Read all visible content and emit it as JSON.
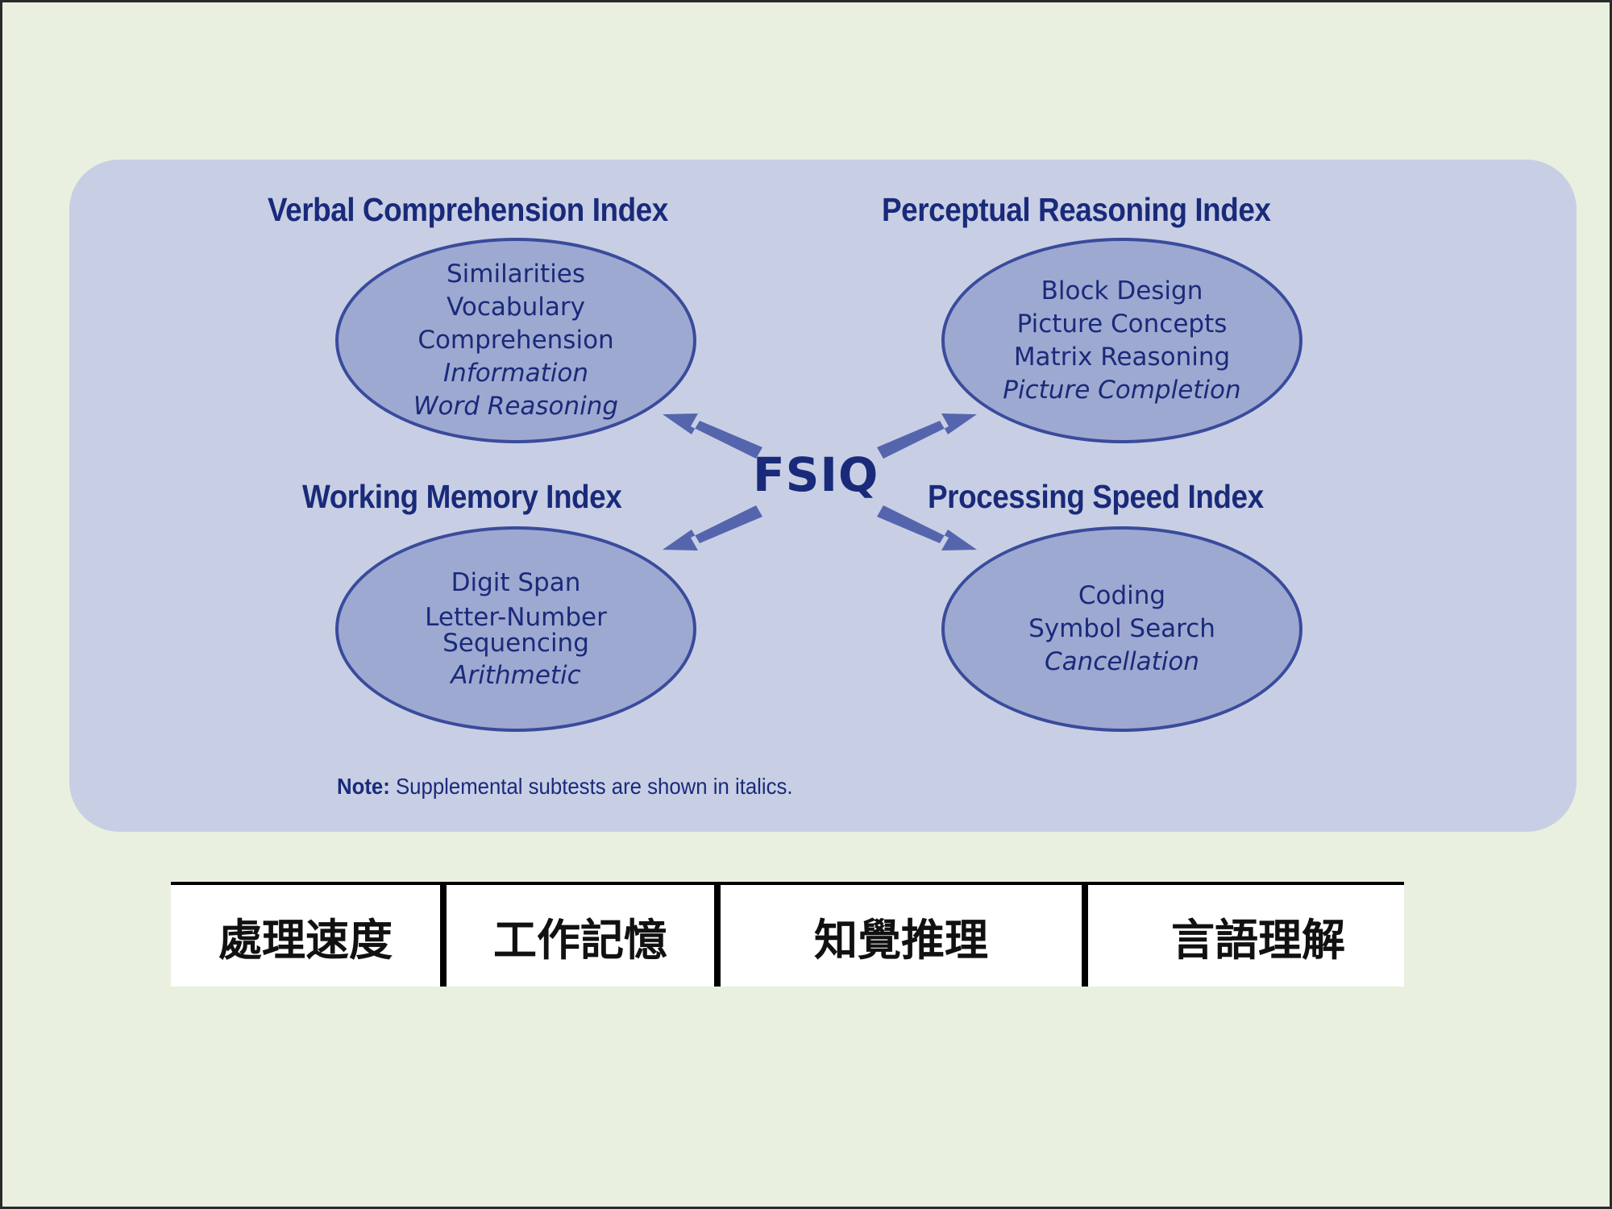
{
  "diagram": {
    "indices": {
      "verbal": {
        "title": "Verbal Comprehension Index",
        "subtests": [
          "Similarities",
          "Vocabulary",
          "Comprehension"
        ],
        "supplemental": [
          "Information",
          "Word Reasoning"
        ]
      },
      "perceptual": {
        "title": "Perceptual Reasoning Index",
        "subtests": [
          "Block Design",
          "Picture Concepts",
          "Matrix Reasoning"
        ],
        "supplemental": [
          "Picture Completion"
        ]
      },
      "working": {
        "title": "Working Memory Index",
        "subtests": [
          "Digit Span",
          "Letter-Number",
          "Sequencing"
        ],
        "supplemental": [
          "Arithmetic"
        ]
      },
      "processing": {
        "title": "Processing Speed Index",
        "subtests": [
          "Coding",
          "Symbol Search"
        ],
        "supplemental": [
          "Cancellation"
        ]
      }
    },
    "center": "FSIQ",
    "note": {
      "label": "Note:",
      "text": "Supplemental subtests are shown in italics."
    },
    "colors": {
      "panel": "#c8cfe4",
      "ellipse_fill": "#9ea9d1",
      "ellipse_stroke": "#3a4b9c",
      "text": "#1a2a7a",
      "arrow": "#5565ad"
    }
  },
  "chinese_labels": [
    "處理速度",
    "工作記憶",
    "知覺推理",
    "言語理解"
  ]
}
